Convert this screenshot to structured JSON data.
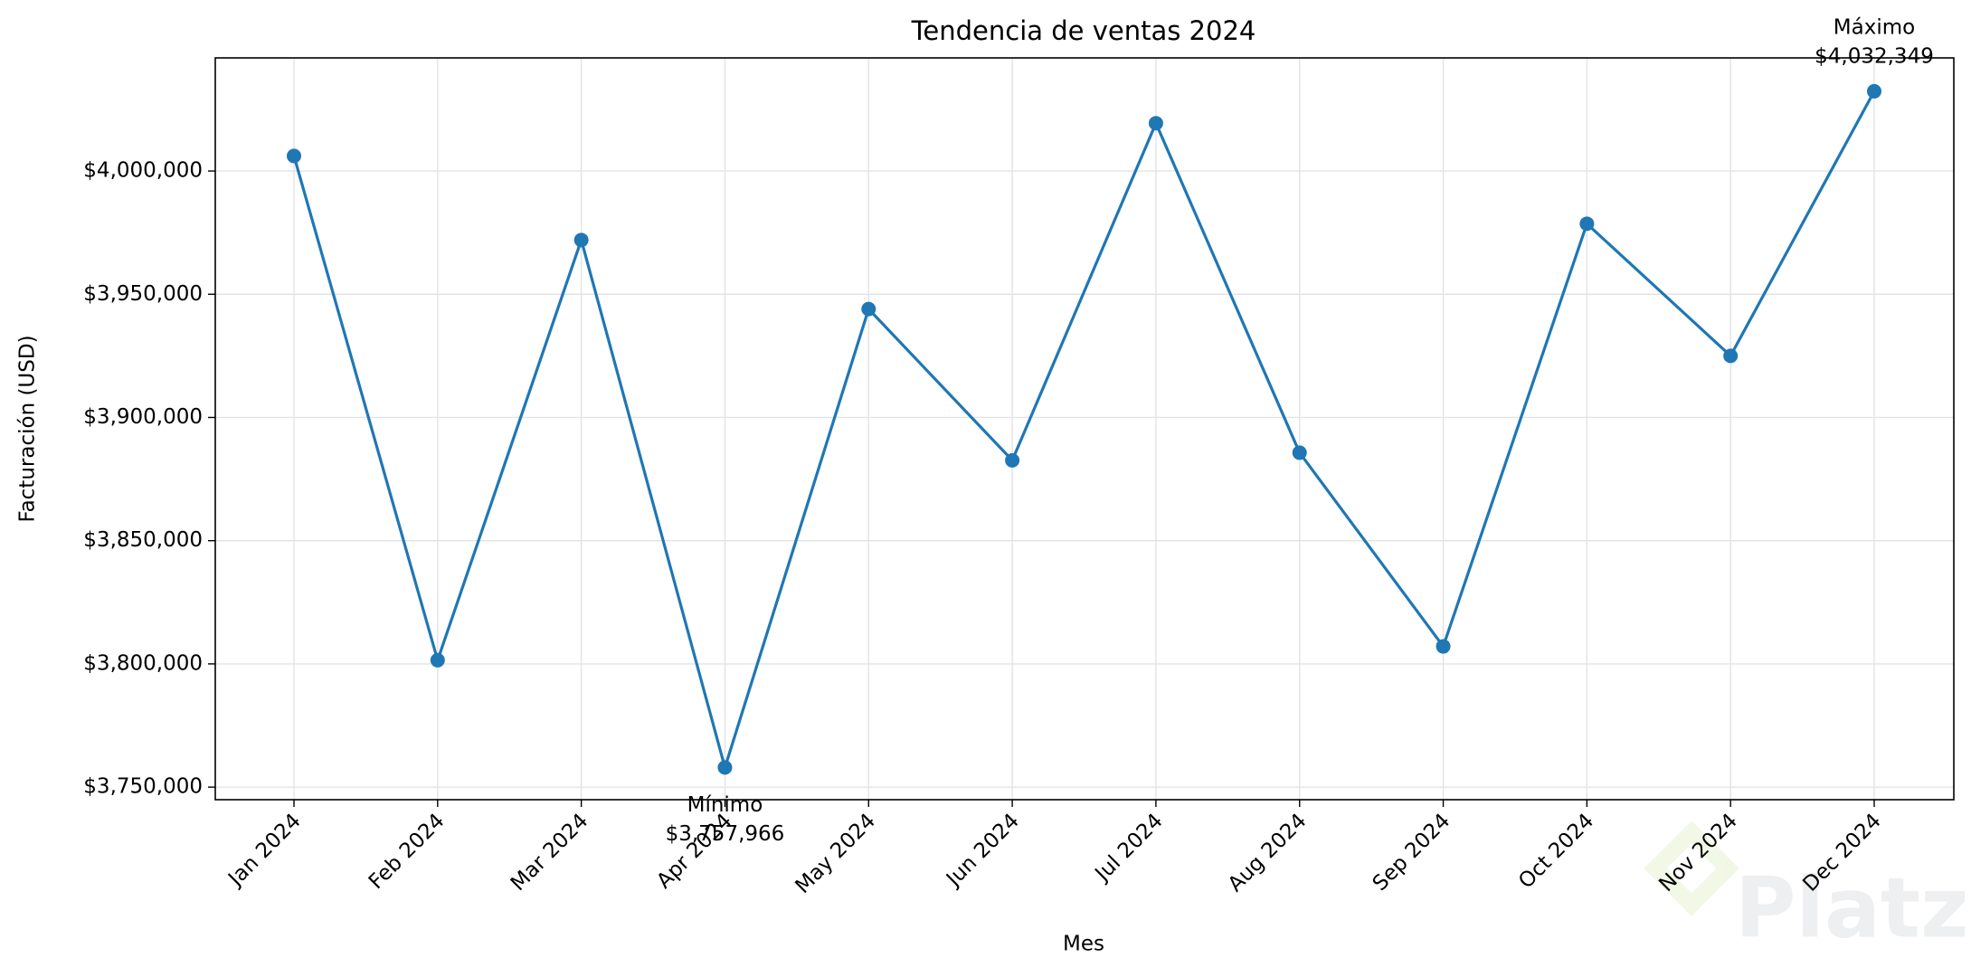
{
  "chart_data": {
    "type": "line",
    "title": "Tendencia de ventas 2024",
    "x_label": "Mes",
    "y_label": "Facturación (USD)",
    "categories": [
      "Jan 2024",
      "Feb 2024",
      "Mar 2024",
      "Apr 2024",
      "May 2024",
      "Jun 2024",
      "Jul 2024",
      "Aug 2024",
      "Sep 2024",
      "Oct 2024",
      "Nov 2024",
      "Dec 2024"
    ],
    "series": [
      {
        "name": "Facturación",
        "color": "#1f77b4",
        "values": [
          4006100,
          3801500,
          3972000,
          3757966,
          3944000,
          3882600,
          4019400,
          3885700,
          3807100,
          3978600,
          3925000,
          4032349
        ],
        "value_labels": [
          null,
          null,
          null,
          "$3,757,966",
          null,
          null,
          null,
          null,
          null,
          null,
          null,
          "$4,032,349"
        ],
        "annotations": [
          null,
          null,
          null,
          "Mínimo",
          null,
          null,
          null,
          null,
          null,
          null,
          null,
          "Máximo"
        ]
      }
    ],
    "ylim": [
      3744900,
      4045900
    ],
    "yticks": [
      {
        "value": 3750000,
        "label": "$3,750,000"
      },
      {
        "value": 3800000,
        "label": "$3,800,000"
      },
      {
        "value": 3850000,
        "label": "$3,850,000"
      },
      {
        "value": 3900000,
        "label": "$3,900,000"
      },
      {
        "value": 3950000,
        "label": "$3,950,000"
      },
      {
        "value": 4000000,
        "label": "$4,000,000"
      }
    ],
    "grid": true,
    "watermark": "Platzi"
  }
}
